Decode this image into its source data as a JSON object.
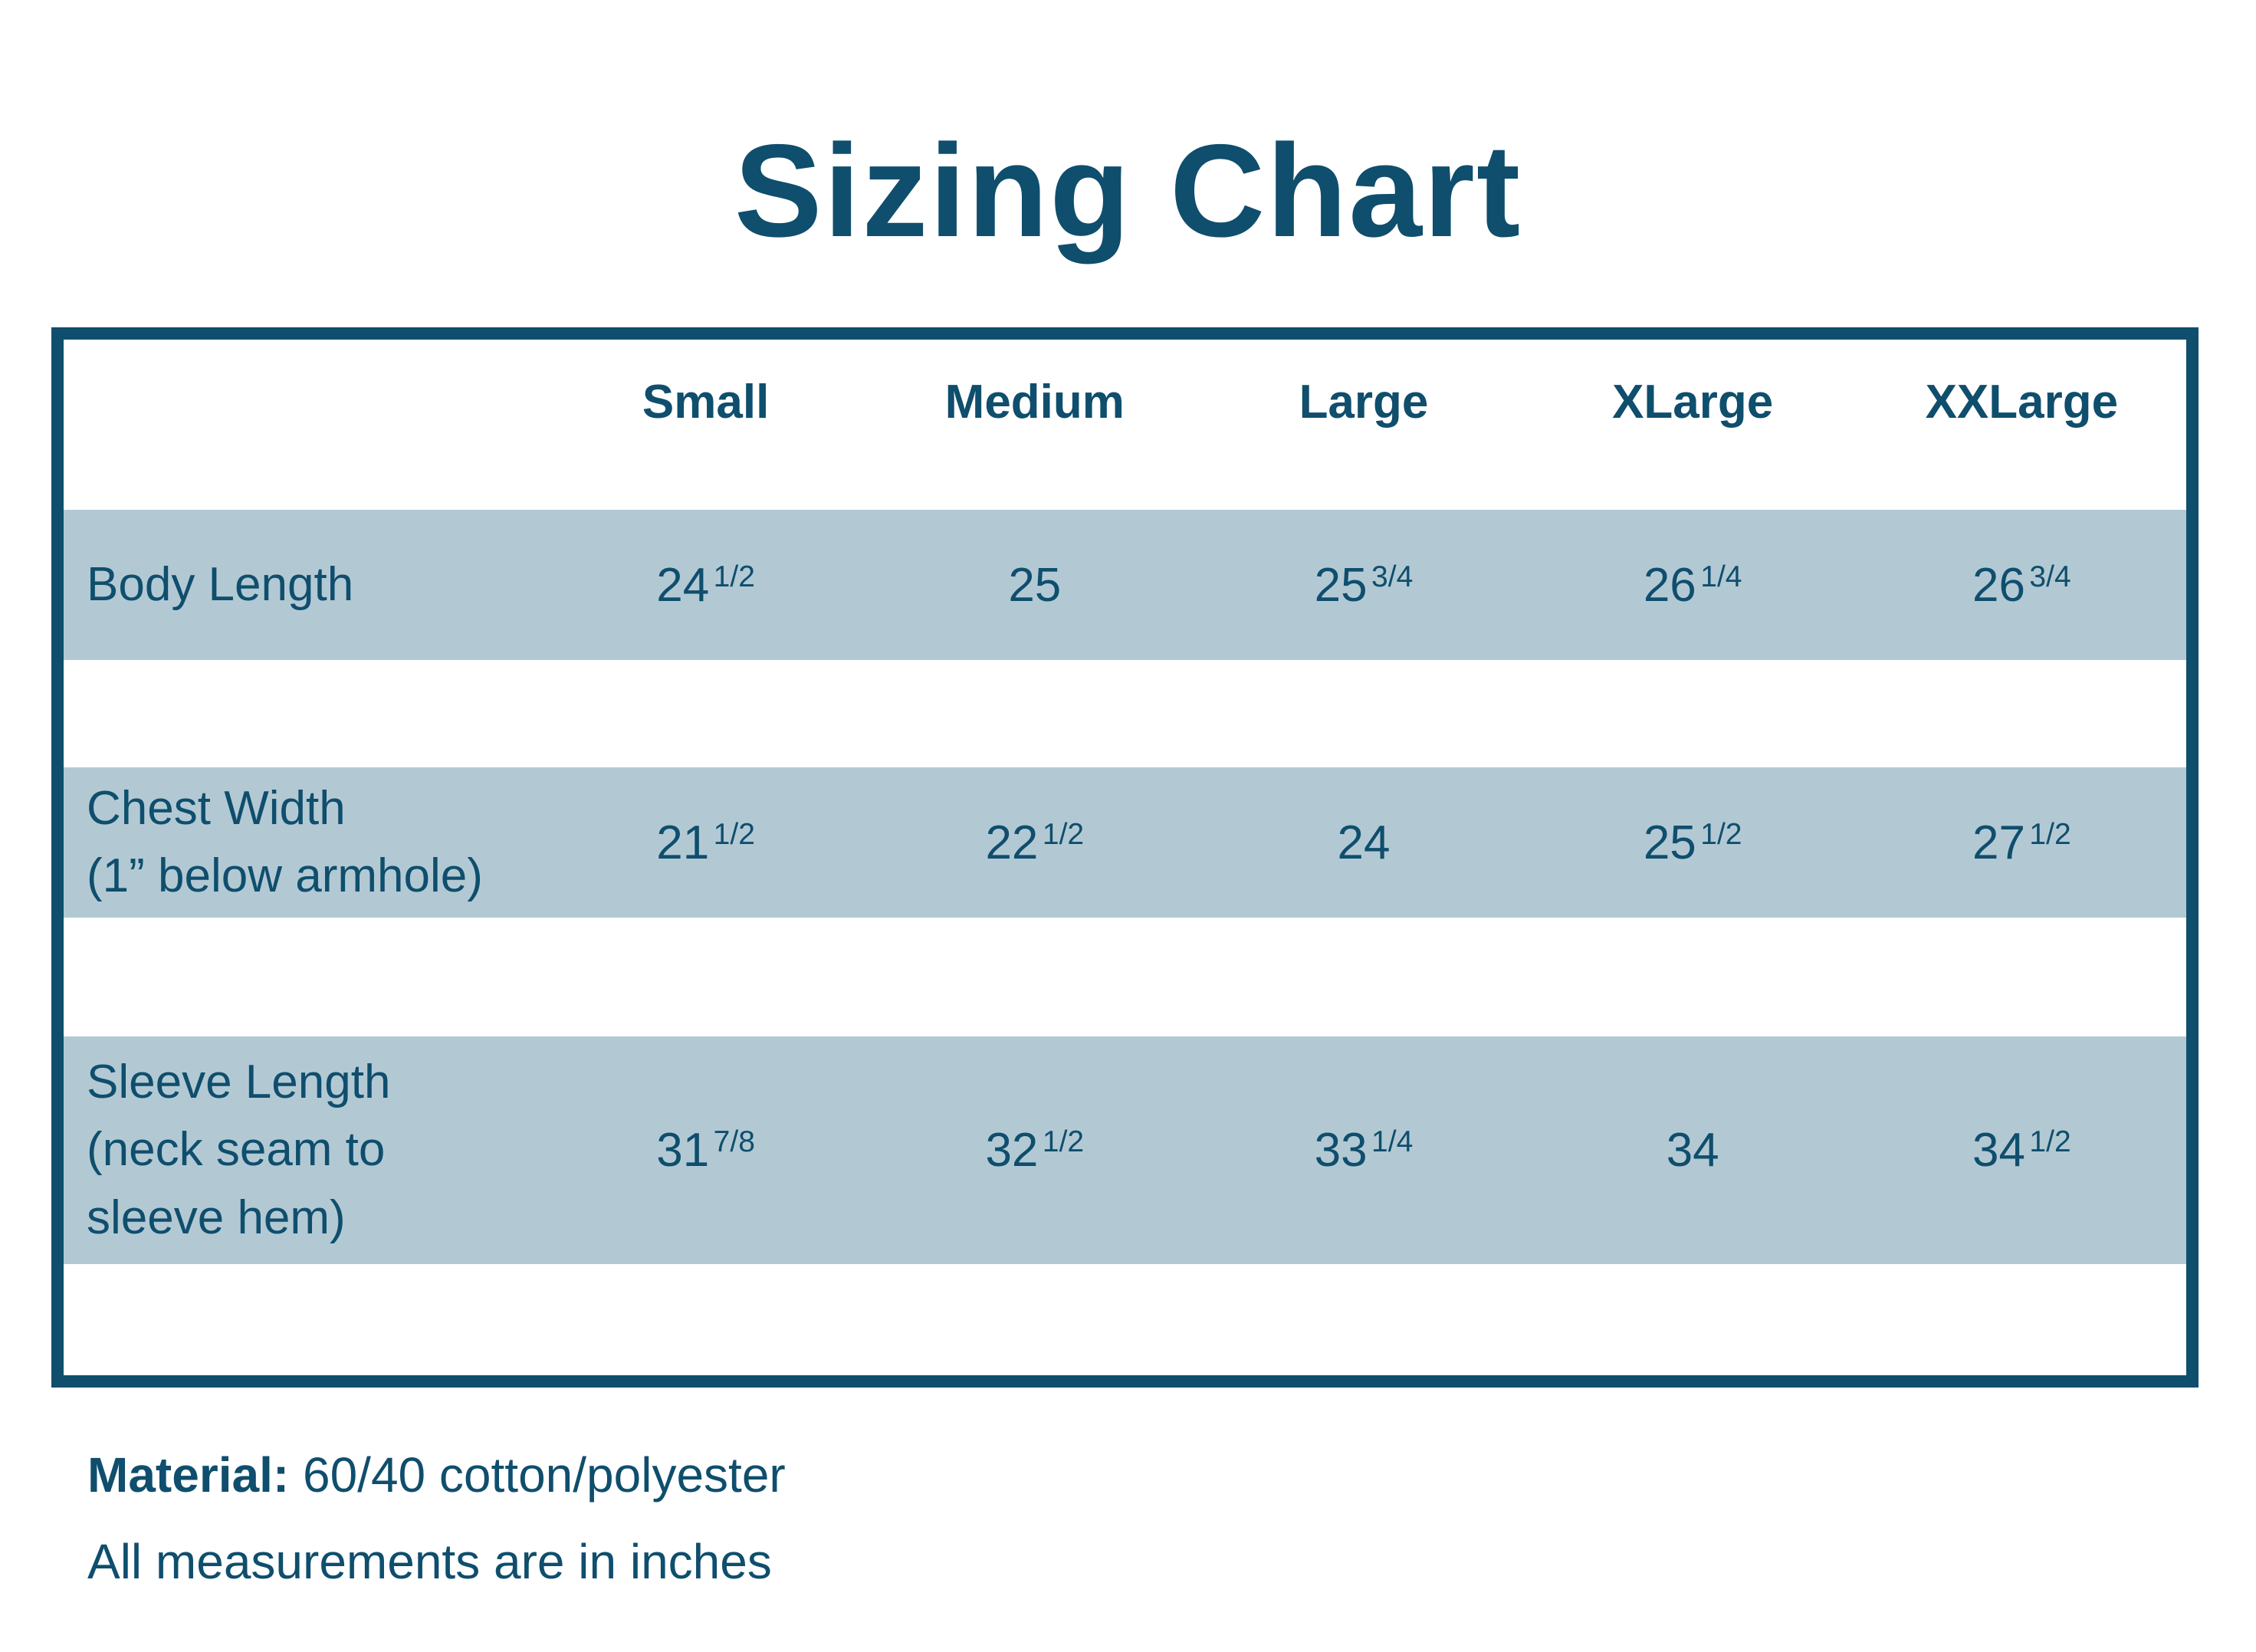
{
  "title": "Sizing Chart",
  "colors": {
    "dark_teal": "#0f4e6d",
    "row_band": "#b2c9d4",
    "background": "#ffffff"
  },
  "chart_data": {
    "type": "table",
    "columns": [
      "",
      "Small",
      "Medium",
      "Large",
      "XLarge",
      "XXLarge"
    ],
    "rows": [
      {
        "label": "Body Length",
        "values": [
          "24 1/2",
          "25",
          "25 3/4",
          "26 1/4",
          "26 3/4"
        ]
      },
      {
        "label": "Chest Width\n(1” below armhole)",
        "values": [
          "21 1/2",
          "22 1/2",
          "24",
          "25 1/2",
          "27 1/2"
        ]
      },
      {
        "label": "Sleeve Length\n(neck seam to\nsleeve hem)",
        "values": [
          "31 7/8",
          "32 1/2",
          "33 1/4",
          "34",
          "34 1/2"
        ]
      }
    ],
    "units": "inches"
  },
  "footer": {
    "material_label": "Material:",
    "material_value": "60/40 cotton/polyester",
    "note": "All measurements are in inches"
  }
}
